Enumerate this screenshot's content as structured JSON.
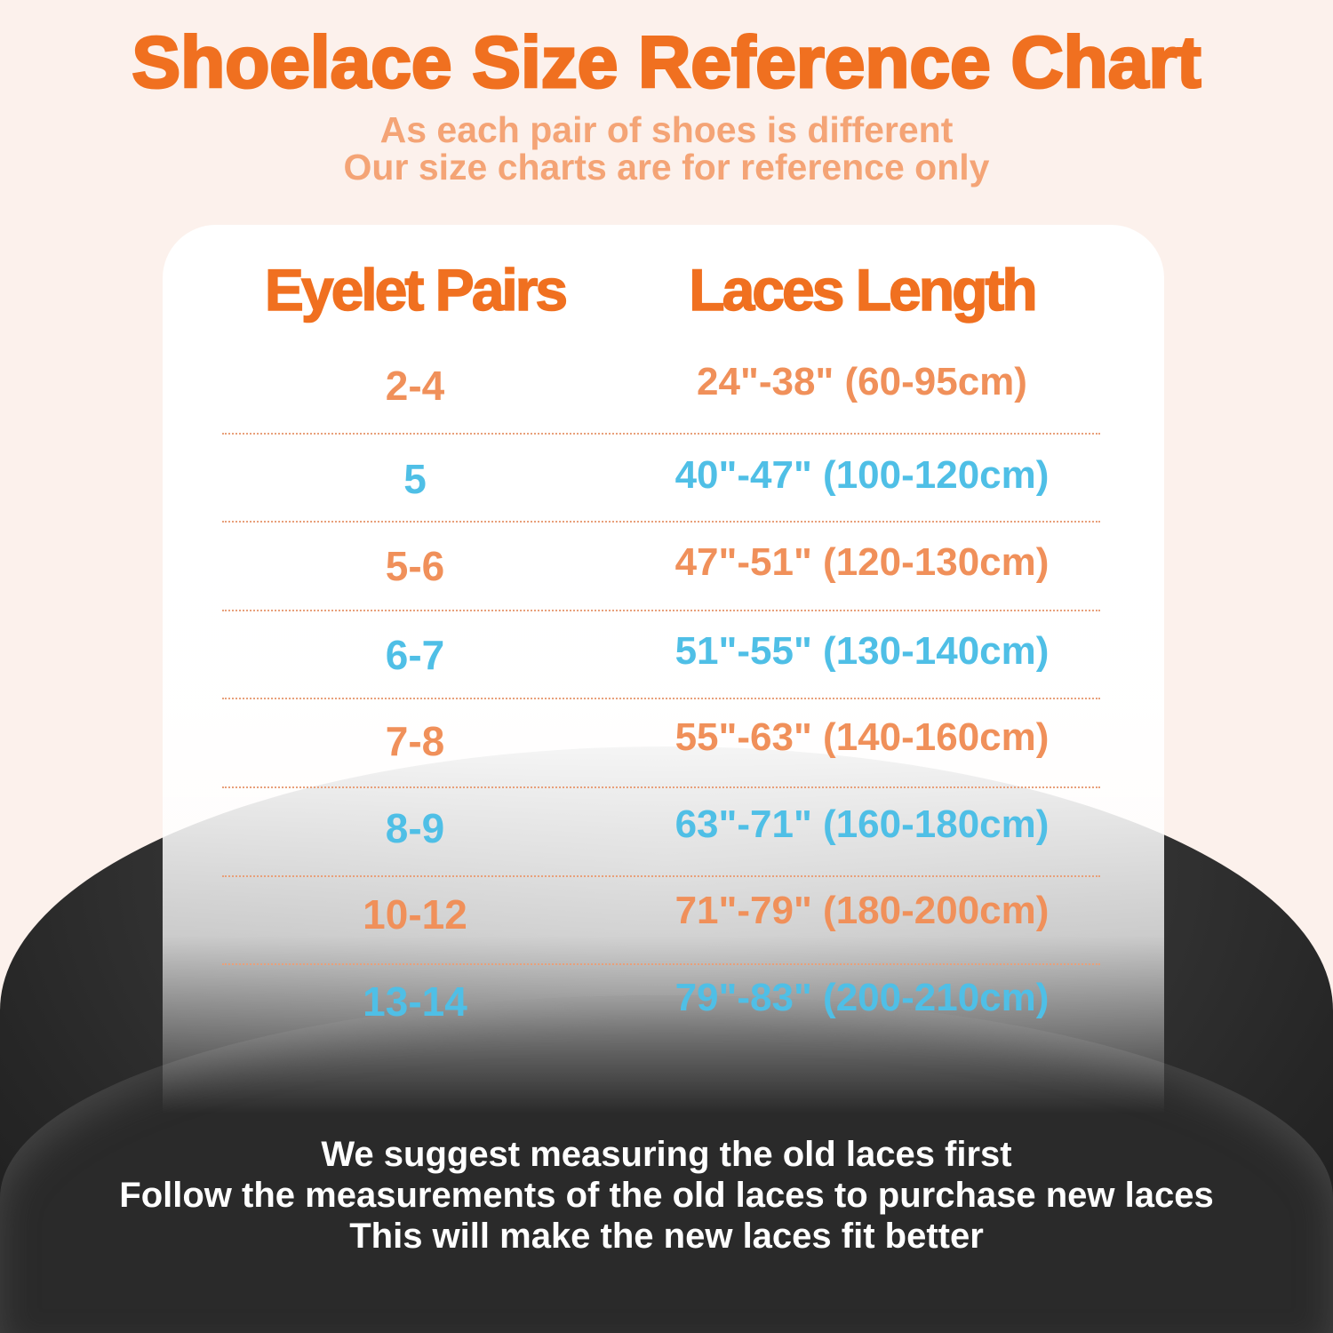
{
  "title": "Shoelace Size Reference Chart",
  "subtitle": [
    "As each pair of shoes is different",
    "Our size charts are for reference only"
  ],
  "headers": {
    "eyelet": "Eyelet Pairs",
    "length": "Laces Length"
  },
  "colors": {
    "title": "#f07020",
    "orange_row": "#f0905a",
    "blue_row": "#4fbfe6"
  },
  "rows": [
    {
      "pairs": "2-4",
      "length": "24\"-38\" (60-95cm)",
      "color": "#f0905a"
    },
    {
      "pairs": "5",
      "length": "40\"-47\" (100-120cm)",
      "color": "#4fbfe6"
    },
    {
      "pairs": "5-6",
      "length": "47\"-51\" (120-130cm)",
      "color": "#f0905a"
    },
    {
      "pairs": "6-7",
      "length": "51\"-55\" (130-140cm)",
      "color": "#4fbfe6"
    },
    {
      "pairs": "7-8",
      "length": "55\"-63\" (140-160cm)",
      "color": "#f0905a"
    },
    {
      "pairs": "8-9",
      "length": "63\"-71\" (160-180cm)",
      "color": "#4fbfe6"
    },
    {
      "pairs": "10-12",
      "length": "71\"-79\" (180-200cm)",
      "color": "#f0905a"
    },
    {
      "pairs": "13-14",
      "length": "79\"-83\" (200-210cm)",
      "color": "#4fbfe6"
    }
  ],
  "footer": [
    "We suggest measuring the old laces first",
    "Follow the measurements of the old laces to purchase new laces",
    "This will make the new laces fit better"
  ]
}
